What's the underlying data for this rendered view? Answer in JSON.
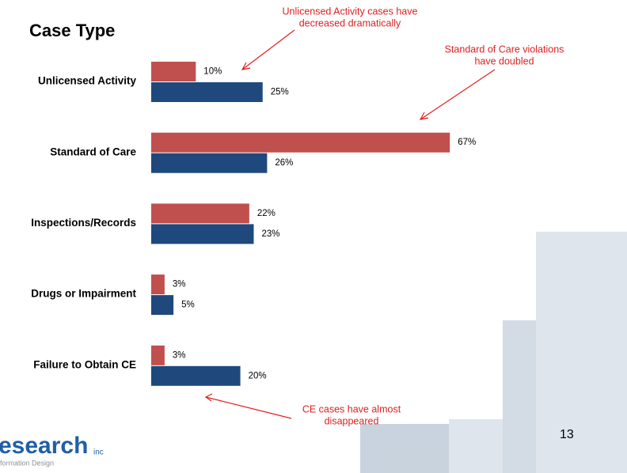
{
  "chart_data": {
    "type": "hbar",
    "title": "Case Type",
    "categories": [
      "Unlicensed Activity",
      "Standard of Care",
      "Inspections/Records",
      "Drugs or Impairment",
      "Failure to Obtain CE"
    ],
    "series": [
      {
        "color": "#c0504d",
        "values": [
          10,
          67,
          22,
          3,
          3
        ],
        "value_labels": [
          "10%",
          "67%",
          "22%",
          "3%",
          "3%"
        ]
      },
      {
        "color": "#1f497d",
        "values": [
          25,
          26,
          23,
          5,
          20
        ],
        "value_labels": [
          "25%",
          "26%",
          "23%",
          "5%",
          "20%"
        ]
      }
    ],
    "annotations": [
      [
        "Unlicensed Activity cases have",
        "decreased dramatically"
      ],
      [
        "Standard of Care violations",
        "have doubled"
      ],
      [
        "CE cases have almost",
        "disappeared"
      ]
    ],
    "page_number": "13",
    "logo": {
      "word": "esearch",
      "suffix": "inc",
      "tagline": "formation Design"
    }
  }
}
